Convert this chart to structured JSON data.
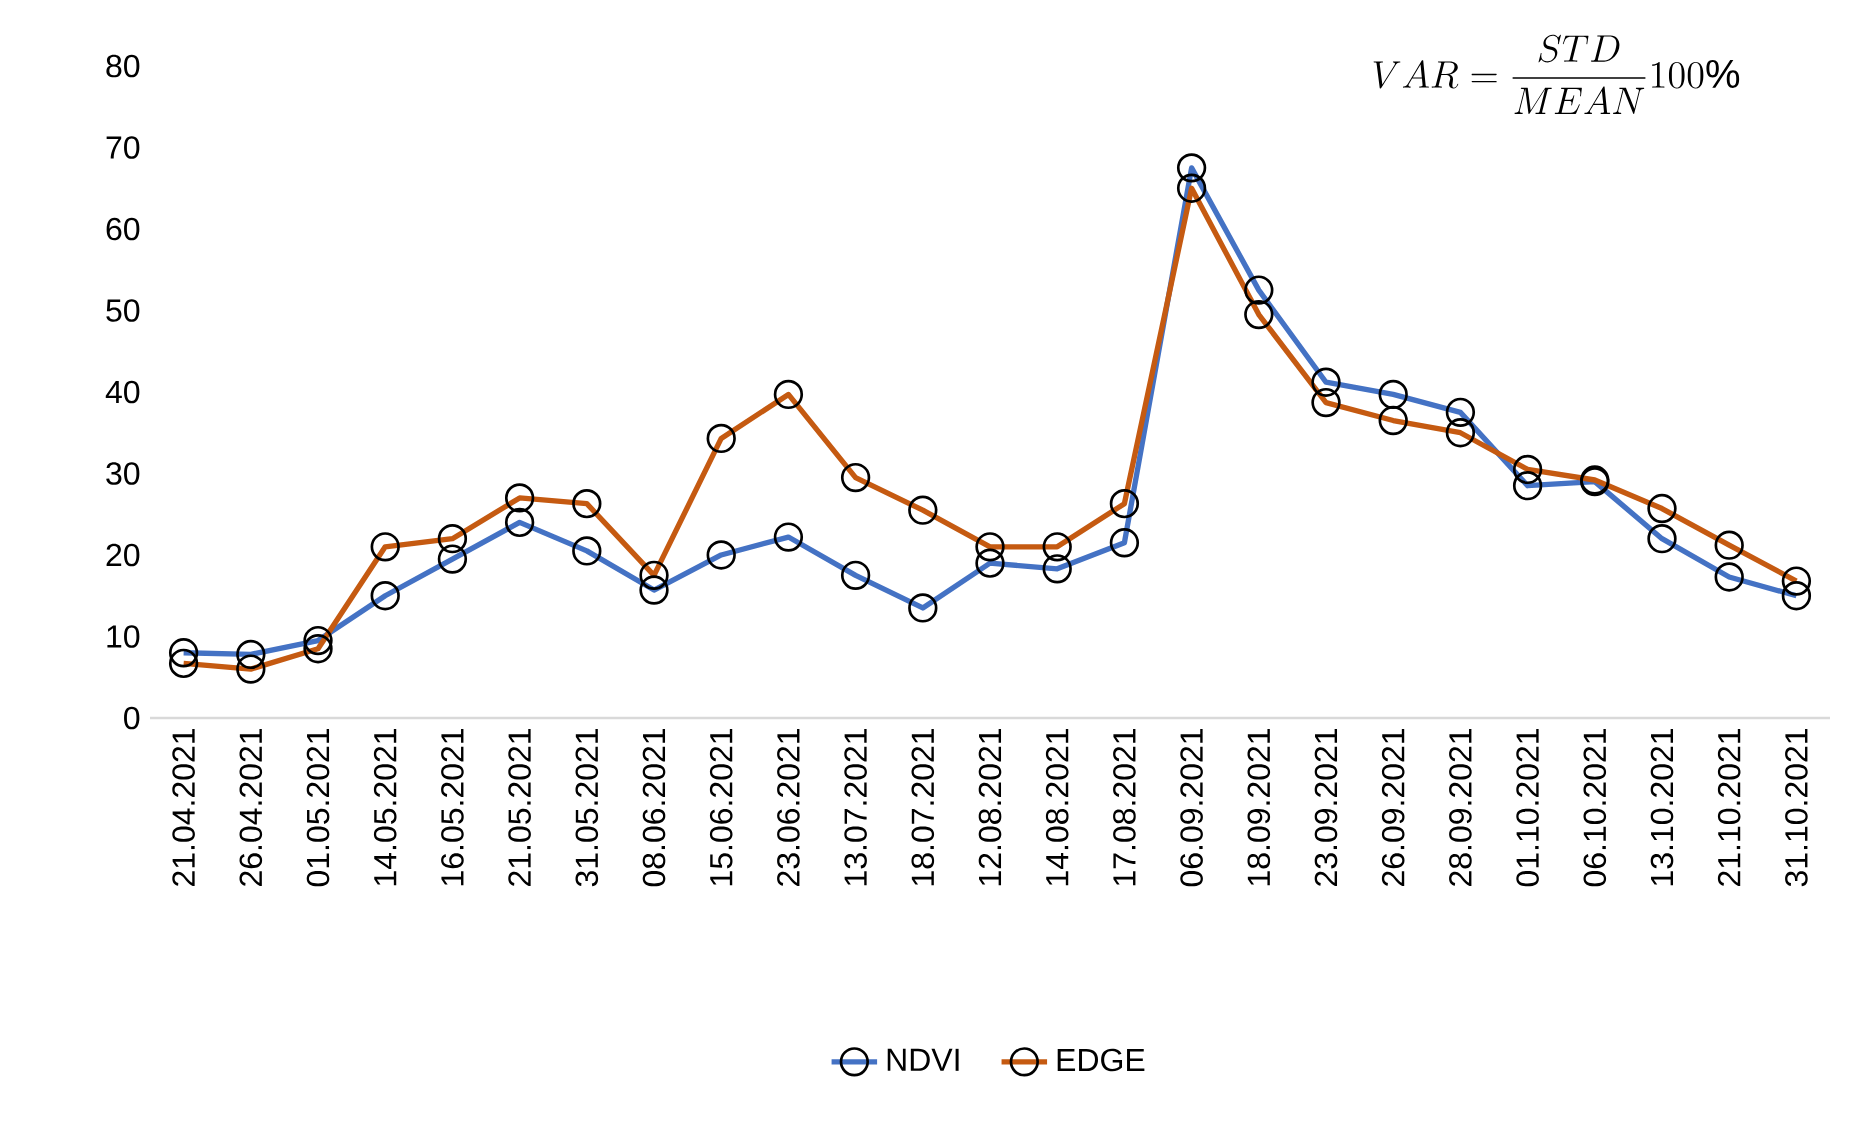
{
  "chart_data": {
    "type": "line",
    "categories": [
      "21.04.2021",
      "26.04.2021",
      "01.05.2021",
      "14.05.2021",
      "16.05.2021",
      "21.05.2021",
      "31.05.2021",
      "08.06.2021",
      "15.06.2021",
      "23.06.2021",
      "13.07.2021",
      "18.07.2021",
      "12.08.2021",
      "14.08.2021",
      "17.08.2021",
      "06.09.2021",
      "18.09.2021",
      "23.09.2021",
      "26.09.2021",
      "28.09.2021",
      "01.10.2021",
      "06.10.2021",
      "13.10.2021",
      "21.10.2021",
      "31.10.2021"
    ],
    "series": [
      {
        "name": "NDVI",
        "color": "#4472c4",
        "values": [
          8,
          7.8,
          9.5,
          15,
          19.5,
          24,
          20.5,
          15.7,
          20,
          22.2,
          17.5,
          13.5,
          19,
          18.3,
          21.5,
          67.5,
          52.5,
          41.2,
          39.7,
          37.5,
          28.5,
          29,
          22,
          17.3,
          15
        ]
      },
      {
        "name": "EDGE",
        "color": "#c55a11",
        "values": [
          6.7,
          6,
          8.5,
          21,
          22,
          27,
          26.3,
          17.5,
          34.3,
          39.7,
          29.5,
          25.5,
          21,
          21,
          26.3,
          65,
          49.5,
          38.7,
          36.5,
          35,
          30.5,
          29.2,
          25.7,
          21.2,
          16.8
        ]
      }
    ],
    "ylim": [
      0,
      80
    ],
    "yticks": [
      0,
      10,
      20,
      30,
      40,
      50,
      60,
      70,
      80
    ],
    "marker": "circle",
    "line_style": "solid",
    "legend": "bottom",
    "annotations": [
      "VAR=\\frac{STD}{MEAN}100\\%"
    ]
  }
}
